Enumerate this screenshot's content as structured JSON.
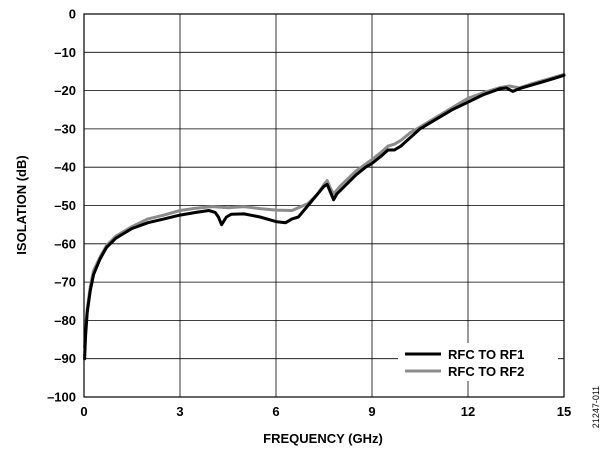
{
  "chart_data": {
    "type": "line",
    "title": "",
    "xlabel": "FREQUENCY (GHz)",
    "ylabel": "ISOLATION (dB)",
    "xlim": [
      0,
      15
    ],
    "ylim": [
      -100,
      0
    ],
    "xticks": [
      0,
      3,
      6,
      9,
      12,
      15
    ],
    "yticks": [
      0,
      -10,
      -20,
      -30,
      -40,
      -50,
      -60,
      -70,
      -80,
      -90,
      -100
    ],
    "xtick_labels": [
      "0",
      "3",
      "6",
      "9",
      "12",
      "15"
    ],
    "ytick_labels": [
      "0",
      "–10",
      "–20",
      "–30",
      "–40",
      "–50",
      "–60",
      "–70",
      "–80",
      "–90",
      "–100"
    ],
    "grid": true,
    "legend_position": "bottom-right",
    "series": [
      {
        "name": "RFC TO RF1",
        "color": "#000000",
        "x": [
          0.02,
          0.05,
          0.1,
          0.2,
          0.3,
          0.5,
          0.7,
          1.0,
          1.5,
          2.0,
          2.5,
          3.0,
          3.5,
          3.9,
          4.1,
          4.2,
          4.3,
          4.45,
          4.6,
          5.0,
          5.5,
          6.0,
          6.3,
          6.5,
          6.7,
          7.0,
          7.3,
          7.5,
          7.6,
          7.7,
          7.8,
          7.9,
          8.2,
          8.5,
          8.8,
          9.0,
          9.3,
          9.5,
          9.7,
          9.9,
          10.1,
          10.5,
          11.0,
          11.5,
          12.0,
          12.5,
          13.0,
          13.2,
          13.4,
          13.6,
          14.0,
          14.5,
          15.0
        ],
        "y": [
          -90,
          -84,
          -78,
          -72,
          -68,
          -64,
          -61,
          -58.5,
          -56,
          -54.5,
          -53.5,
          -52.5,
          -51.8,
          -51.3,
          -51.8,
          -53,
          -55,
          -53,
          -52.3,
          -52.2,
          -53,
          -54.2,
          -54.5,
          -53.5,
          -53,
          -50,
          -47,
          -45,
          -44.5,
          -46.5,
          -48.5,
          -47,
          -44.5,
          -42,
          -40,
          -39,
          -37,
          -35.5,
          -35.5,
          -34.5,
          -33,
          -30,
          -27.5,
          -25,
          -23,
          -21,
          -19.5,
          -19.3,
          -20.2,
          -19.5,
          -18.5,
          -17.3,
          -16
        ]
      },
      {
        "name": "RFC TO RF2",
        "color": "#8c8c8c",
        "x": [
          0.02,
          0.05,
          0.1,
          0.2,
          0.3,
          0.5,
          0.7,
          1.0,
          1.5,
          2.0,
          2.5,
          3.0,
          3.5,
          4.0,
          4.5,
          5.0,
          5.5,
          6.0,
          6.5,
          7.0,
          7.3,
          7.5,
          7.6,
          7.7,
          7.8,
          8.0,
          8.5,
          9.0,
          9.3,
          9.5,
          9.7,
          9.9,
          10.2,
          10.5,
          11.0,
          11.5,
          12.0,
          12.5,
          13.0,
          13.3,
          13.6,
          14.0,
          14.5,
          15.0
        ],
        "y": [
          -87,
          -82,
          -77,
          -71,
          -67,
          -63.5,
          -60.5,
          -58,
          -55.5,
          -53.5,
          -52.5,
          -51.3,
          -50.7,
          -50.3,
          -50.6,
          -50.3,
          -50.8,
          -51.2,
          -51.3,
          -49.5,
          -47,
          -44.5,
          -43.5,
          -45.5,
          -47,
          -45,
          -41,
          -38,
          -36,
          -34.5,
          -34,
          -33,
          -31,
          -29.5,
          -27,
          -24.5,
          -22,
          -20.5,
          -19.2,
          -18.8,
          -19.3,
          -18.2,
          -17,
          -15.8
        ]
      }
    ],
    "figure_code": "21247-011"
  }
}
